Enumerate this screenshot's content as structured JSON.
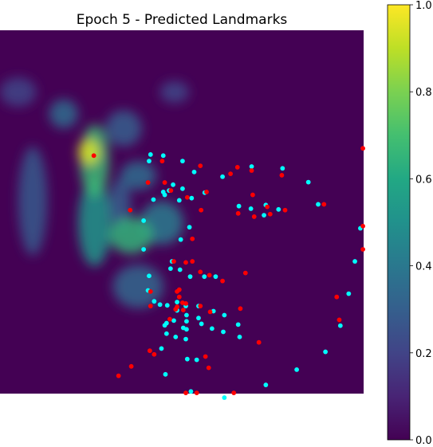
{
  "chart_data": {
    "type": "heatmap",
    "title": "Epoch 5 - Predicted Landmarks",
    "xlabel": "",
    "ylabel": "",
    "colormap": "viridis",
    "colorbar": {
      "range": [
        0.0,
        1.0
      ],
      "ticks": [
        0.0,
        0.2,
        0.4,
        0.6,
        0.8,
        1.0
      ],
      "tick_labels": [
        "0.0",
        "0.2",
        "0.4",
        "0.6",
        "0.8",
        "1.0"
      ]
    },
    "axes_visible": false,
    "image_extent": [
      0,
      100,
      0,
      100
    ],
    "heat_regions": [
      {
        "x": 26.0,
        "y": 64.0,
        "rx": 4.0,
        "ry": 10.0,
        "v": 0.68
      },
      {
        "x": 26.0,
        "y": 47.0,
        "rx": 4.5,
        "ry": 12.0,
        "v": 0.52
      },
      {
        "x": 24.5,
        "y": 66.5,
        "rx": 3.0,
        "ry": 3.5,
        "v": 0.95
      },
      {
        "x": 36.0,
        "y": 43.5,
        "rx": 6.0,
        "ry": 5.0,
        "v": 0.65
      },
      {
        "x": 44.5,
        "y": 47.0,
        "rx": 6.0,
        "ry": 6.0,
        "v": 0.42
      },
      {
        "x": 38.0,
        "y": 60.0,
        "rx": 5.0,
        "ry": 4.0,
        "v": 0.35
      },
      {
        "x": 9.0,
        "y": 53.0,
        "rx": 4.0,
        "ry": 15.0,
        "v": 0.28
      },
      {
        "x": 38.0,
        "y": 29.5,
        "rx": 7.0,
        "ry": 6.0,
        "v": 0.33
      },
      {
        "x": 17.5,
        "y": 77.0,
        "rx": 4.0,
        "ry": 4.0,
        "v": 0.35
      },
      {
        "x": 34.0,
        "y": 73.0,
        "rx": 5.0,
        "ry": 5.0,
        "v": 0.3
      },
      {
        "x": 48.0,
        "y": 83.0,
        "rx": 4.0,
        "ry": 3.0,
        "v": 0.22
      },
      {
        "x": 5.0,
        "y": 83.0,
        "rx": 5.0,
        "ry": 4.0,
        "v": 0.2
      },
      {
        "x": 33.0,
        "y": 52.0,
        "rx": 3.0,
        "ry": 7.0,
        "v": 0.3
      }
    ],
    "series": [
      {
        "name": "",
        "color": "#00ffff",
        "points": [
          [
            41.4,
            65.8
          ],
          [
            44.9,
            65.5
          ],
          [
            41.0,
            64.0
          ],
          [
            50.2,
            64.0
          ],
          [
            69.2,
            62.5
          ],
          [
            53.4,
            61.0
          ],
          [
            77.7,
            62.0
          ],
          [
            61.2,
            59.7
          ],
          [
            84.8,
            58.2
          ],
          [
            47.6,
            57.5
          ],
          [
            50.2,
            56.4
          ],
          [
            44.9,
            55.5
          ],
          [
            46.5,
            55.9
          ],
          [
            56.3,
            55.3
          ],
          [
            45.3,
            54.7
          ],
          [
            52.7,
            53.8
          ],
          [
            42.2,
            53.4
          ],
          [
            49.3,
            53.2
          ],
          [
            87.5,
            52.1
          ],
          [
            73.1,
            51.9
          ],
          [
            65.7,
            51.6
          ],
          [
            69.0,
            50.9
          ],
          [
            76.6,
            50.7
          ],
          [
            72.6,
            49.1
          ],
          [
            39.5,
            47.6
          ],
          [
            52.1,
            45.8
          ],
          [
            99.1,
            45.5
          ],
          [
            49.7,
            42.4
          ],
          [
            39.5,
            39.7
          ],
          [
            97.6,
            36.4
          ],
          [
            47.3,
            36.4
          ],
          [
            46.9,
            34.4
          ],
          [
            49.5,
            34.1
          ],
          [
            56.2,
            32.2
          ],
          [
            52.3,
            32.2
          ],
          [
            59.3,
            32.2
          ],
          [
            41.0,
            32.4
          ],
          [
            40.7,
            28.4
          ],
          [
            95.9,
            27.5
          ],
          [
            42.4,
            25.4
          ],
          [
            48.7,
            25.2
          ],
          [
            44.0,
            24.5
          ],
          [
            46.0,
            24.3
          ],
          [
            54.6,
            24.1
          ],
          [
            51.1,
            24.1
          ],
          [
            58.7,
            22.7
          ],
          [
            48.7,
            22.9
          ],
          [
            51.3,
            21.6
          ],
          [
            61.7,
            21.6
          ],
          [
            54.6,
            20.8
          ],
          [
            47.8,
            20.1
          ],
          [
            51.3,
            19.9
          ],
          [
            45.8,
            19.4
          ],
          [
            55.4,
            19.2
          ],
          [
            45.3,
            18.8
          ],
          [
            50.4,
            18.1
          ],
          [
            61.4,
            17.0
          ],
          [
            65.5,
            19.0
          ],
          [
            51.3,
            17.7
          ],
          [
            65.9,
            15.6
          ],
          [
            45.8,
            16.5
          ],
          [
            48.3,
            15.6
          ],
          [
            51.1,
            15.0
          ],
          [
            58.3,
            17.9
          ],
          [
            93.6,
            18.7
          ],
          [
            44.4,
            12.4
          ],
          [
            89.5,
            11.5
          ],
          [
            51.5,
            9.5
          ],
          [
            54.1,
            9.3
          ],
          [
            81.6,
            6.6
          ],
          [
            45.5,
            5.3
          ],
          [
            73.1,
            2.4
          ],
          [
            52.5,
            0.6
          ],
          [
            61.7,
            -1.1
          ]
        ]
      },
      {
        "name": "",
        "color": "#ff0000",
        "points": [
          [
            25.8,
            65.5
          ],
          [
            99.8,
            67.5
          ],
          [
            44.6,
            64.0
          ],
          [
            55.1,
            62.7
          ],
          [
            65.3,
            62.3
          ],
          [
            69.2,
            61.4
          ],
          [
            63.4,
            60.5
          ],
          [
            77.5,
            60.1
          ],
          [
            40.7,
            58.1
          ],
          [
            45.3,
            58.1
          ],
          [
            47.0,
            55.9
          ],
          [
            56.8,
            55.5
          ],
          [
            69.5,
            54.7
          ],
          [
            51.5,
            54.0
          ],
          [
            89.1,
            52.1
          ],
          [
            73.5,
            51.4
          ],
          [
            78.4,
            50.5
          ],
          [
            35.8,
            50.5
          ],
          [
            55.3,
            50.5
          ],
          [
            65.5,
            49.6
          ],
          [
            74.3,
            49.4
          ],
          [
            69.9,
            48.7
          ],
          [
            99.8,
            46.1
          ],
          [
            52.9,
            42.6
          ],
          [
            99.8,
            39.7
          ],
          [
            47.8,
            36.4
          ],
          [
            51.1,
            36.1
          ],
          [
            52.9,
            36.4
          ],
          [
            67.5,
            33.2
          ],
          [
            55.1,
            33.5
          ],
          [
            57.6,
            32.6
          ],
          [
            61.2,
            31.0
          ],
          [
            49.3,
            28.6
          ],
          [
            48.7,
            28.1
          ],
          [
            41.4,
            28.1
          ],
          [
            49.3,
            26.6
          ],
          [
            92.6,
            26.6
          ],
          [
            50.2,
            25.0
          ],
          [
            51.1,
            24.8
          ],
          [
            41.4,
            24.1
          ],
          [
            55.1,
            24.1
          ],
          [
            48.7,
            23.9
          ],
          [
            48.3,
            23.2
          ],
          [
            66.1,
            23.4
          ],
          [
            50.4,
            23.0
          ],
          [
            57.8,
            22.5
          ],
          [
            46.7,
            20.5
          ],
          [
            93.3,
            20.3
          ],
          [
            71.2,
            14.1
          ],
          [
            41.2,
            11.8
          ],
          [
            42.4,
            10.8
          ],
          [
            56.5,
            10.2
          ],
          [
            36.1,
            7.5
          ],
          [
            57.4,
            7.1
          ],
          [
            32.6,
            4.9
          ],
          [
            51.1,
            0.2
          ],
          [
            54.1,
            0.2
          ],
          [
            64.3,
            0.2
          ]
        ]
      }
    ]
  }
}
